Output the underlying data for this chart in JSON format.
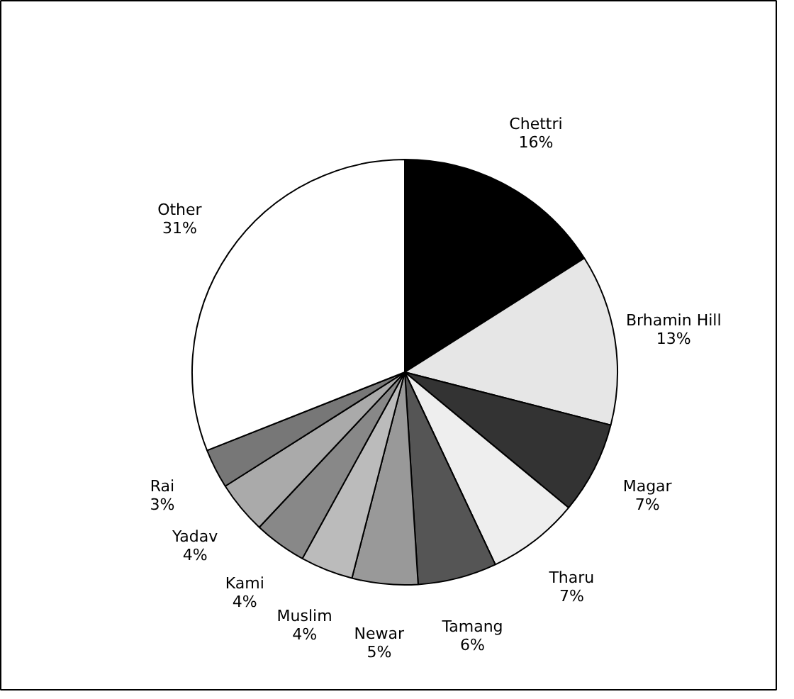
{
  "chart_data": {
    "type": "pie",
    "categories": [
      "Chettri",
      "Brhamin Hill",
      "Magar",
      "Tharu",
      "Tamang",
      "Newar",
      "Muslim",
      "Kami",
      "Yadav",
      "Rai",
      "Other"
    ],
    "values": [
      16,
      13,
      7,
      7,
      6,
      5,
      4,
      4,
      4,
      3,
      31
    ],
    "value_labels": [
      "16%",
      "13%",
      "7%",
      "7%",
      "6%",
      "5%",
      "4%",
      "4%",
      "4%",
      "3%",
      "31%"
    ],
    "colors": [
      "#000000",
      "#e6e6e6",
      "#333333",
      "#eeeeee",
      "#555555",
      "#999999",
      "#bbbbbb",
      "#888888",
      "#aaaaaa",
      "#777777",
      "#ffffff"
    ],
    "legend": false
  }
}
